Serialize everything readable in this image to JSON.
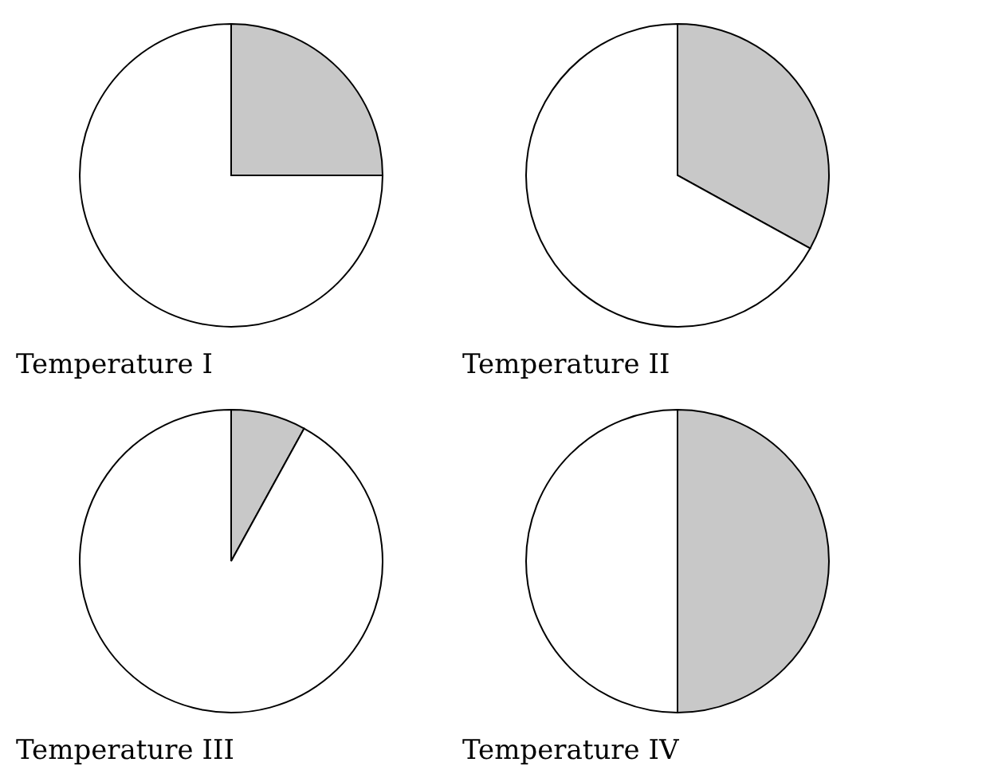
{
  "chart_data": [
    {
      "type": "pie",
      "title": "Temperature I",
      "categories": [
        null,
        null
      ],
      "values": [
        25,
        75
      ],
      "colors": [
        "#c8c8c8",
        "#ffffff"
      ]
    },
    {
      "type": "pie",
      "title": "Temperature II",
      "categories": [
        null,
        null
      ],
      "values": [
        33,
        67
      ],
      "colors": [
        "#c8c8c8",
        "#ffffff"
      ]
    },
    {
      "type": "pie",
      "title": "Temperature III",
      "categories": [
        null,
        null
      ],
      "values": [
        8,
        92
      ],
      "colors": [
        "#c8c8c8",
        "#ffffff"
      ]
    },
    {
      "type": "pie",
      "title": "Temperature IV",
      "categories": [
        null,
        null
      ],
      "values": [
        50,
        50
      ],
      "colors": [
        "#c8c8c8",
        "#ffffff"
      ]
    }
  ]
}
